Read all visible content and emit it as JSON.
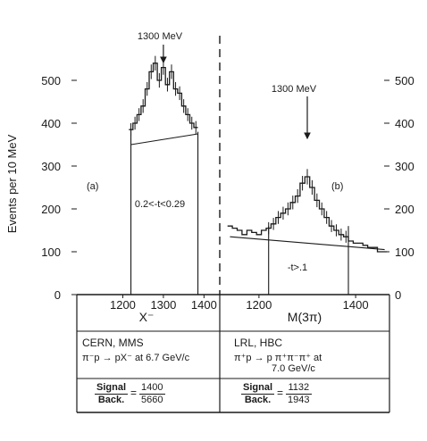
{
  "chart_data": [
    {
      "type": "histogram",
      "panel_label": "(a)",
      "xlabel": "X⁻",
      "ylabel": "Events per 10 MeV",
      "xlim": [
        1100,
        1430
      ],
      "ylim": [
        0,
        600
      ],
      "x_ticks": [
        "1200",
        "1300",
        "1400"
      ],
      "y_ticks": [
        "0",
        "100",
        "200",
        "300",
        "400",
        "500"
      ],
      "peak_annotation": "1300 MeV",
      "peak_x": 1300,
      "cut_label": "0.2<-t<0.29",
      "window": [
        1220,
        1385
      ],
      "background_line": {
        "x": [
          1220,
          1385
        ],
        "y": [
          350,
          375
        ]
      },
      "x": [
        1220,
        1230,
        1240,
        1250,
        1260,
        1270,
        1280,
        1290,
        1300,
        1310,
        1320,
        1330,
        1340,
        1350,
        1360,
        1370,
        1380
      ],
      "y": [
        385,
        400,
        420,
        440,
        480,
        520,
        540,
        500,
        530,
        490,
        520,
        480,
        470,
        440,
        420,
        400,
        390
      ],
      "err": [
        15,
        15,
        15,
        16,
        16,
        17,
        17,
        17,
        17,
        16,
        17,
        16,
        16,
        16,
        15,
        15,
        15
      ]
    },
    {
      "type": "histogram",
      "panel_label": "(b)",
      "xlabel": "M(3π)",
      "ylabel": "",
      "xlim": [
        1130,
        1470
      ],
      "ylim": [
        0,
        600
      ],
      "x_ticks": [
        "1200",
        "1400"
      ],
      "y_ticks": [
        "0",
        "100",
        "200",
        "300",
        "400",
        "500"
      ],
      "peak_annotation": "1300 MeV",
      "peak_x": 1300,
      "cut_label": "-t>.1",
      "window": [
        1220,
        1385
      ],
      "background_line": {
        "x": [
          1140,
          1460
        ],
        "y": [
          135,
          105
        ]
      },
      "x": [
        1140,
        1150,
        1160,
        1170,
        1180,
        1190,
        1200,
        1210,
        1220,
        1230,
        1240,
        1250,
        1260,
        1270,
        1280,
        1290,
        1300,
        1310,
        1320,
        1330,
        1340,
        1350,
        1360,
        1370,
        1380,
        1390,
        1400,
        1410,
        1420,
        1430,
        1440,
        1450,
        1460
      ],
      "y": [
        160,
        155,
        150,
        140,
        150,
        145,
        140,
        150,
        155,
        165,
        180,
        190,
        200,
        215,
        230,
        260,
        275,
        250,
        220,
        200,
        180,
        160,
        150,
        140,
        135,
        125,
        120,
        120,
        115,
        110,
        110,
        100,
        100
      ],
      "err": [
        0,
        0,
        0,
        0,
        0,
        0,
        0,
        0,
        14,
        14,
        15,
        15,
        15,
        16,
        16,
        17,
        18,
        17,
        16,
        15,
        15,
        14,
        14,
        14,
        14,
        0,
        0,
        0,
        0,
        0,
        0,
        0,
        0
      ]
    }
  ],
  "info_left": {
    "experiment": "CERN, MMS",
    "reaction": "π⁻p → pX⁻ at 6.7 GeV/c",
    "ratio_num_label": "Signal",
    "ratio_den_label": "Back.",
    "ratio_num": "1400",
    "ratio_den": "5660"
  },
  "info_right": {
    "experiment": "LRL, HBC",
    "reaction": "π⁺p → p π⁺π⁻π⁺ at",
    "reaction_2": "7.0 GeV/c",
    "ratio_num_label": "Signal",
    "ratio_den_label": "Back.",
    "ratio_num": "1132",
    "ratio_den": "1943"
  }
}
